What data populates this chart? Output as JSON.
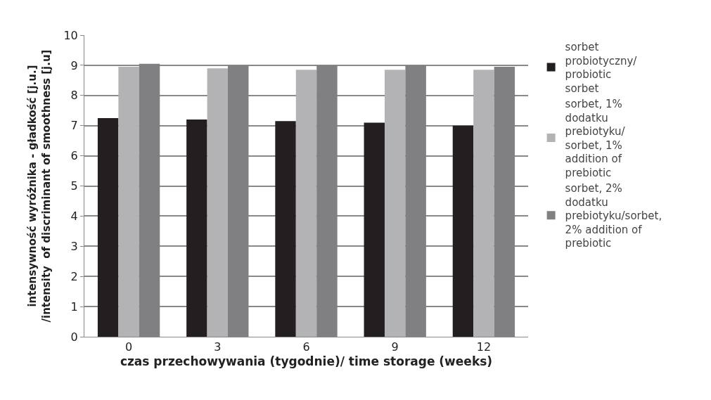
{
  "chart_data": {
    "type": "bar",
    "xlabel": "czas przechowywania (tygodnie)/ time storage (weeks)",
    "ylabel": "intensywność wyróżnika - gładkość [j.u.]\n/intensity  of discriminant of smoothness [j.u]",
    "categories": [
      "0",
      "3",
      "6",
      "9",
      "12"
    ],
    "series": [
      {
        "name": "sorbet probiotyczny/ probiotic sorbet",
        "color": "#231f20",
        "values": [
          7.25,
          7.2,
          7.15,
          7.1,
          7.0
        ]
      },
      {
        "name": "sorbet, 1% dodatku prebiotyku/ sorbet, 1% addition of prebiotic",
        "color": "#b3b3b6",
        "values": [
          8.95,
          8.9,
          8.85,
          8.85,
          8.85
        ]
      },
      {
        "name": "sorbet, 2% dodatku prebiotyku/sorbet, 2% addition of prebiotic",
        "color": "#808083",
        "values": [
          9.05,
          9.0,
          9.0,
          9.0,
          8.95
        ]
      }
    ],
    "ylim": [
      0,
      10
    ],
    "yticks": [
      0,
      1,
      2,
      3,
      4,
      5,
      6,
      7,
      8,
      9,
      10
    ],
    "grid": "y",
    "legend": "right"
  }
}
